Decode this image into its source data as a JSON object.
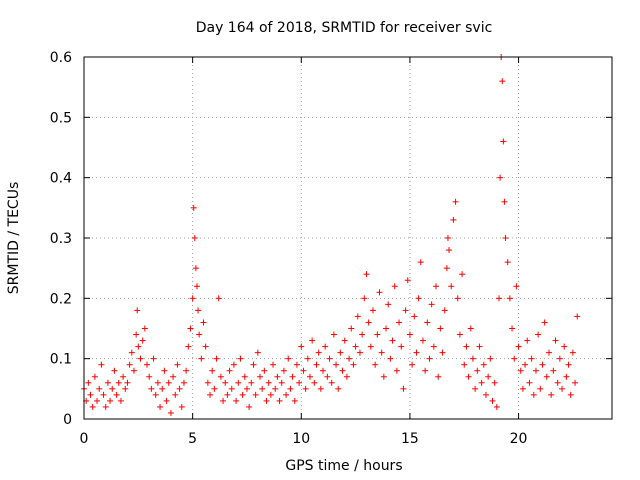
{
  "chart_data": {
    "type": "scatter",
    "title": "Day 164 of 2018, SRMTID for receiver svic",
    "xlabel": "GPS time / hours",
    "ylabel": "SRMTID / TECUs",
    "xlim": [
      0,
      24.3
    ],
    "ylim": [
      0,
      0.6
    ],
    "xticks": [
      0,
      5,
      10,
      15,
      20
    ],
    "xtick_labels": [
      "0",
      "5",
      "10",
      "15",
      "20"
    ],
    "yticks": [
      0,
      0.1,
      0.2,
      0.3,
      0.4,
      0.5,
      0.6
    ],
    "ytick_labels": [
      "0",
      "0.1",
      "0.2",
      "0.3",
      "0.4",
      "0.5",
      "0.6"
    ],
    "grid": true,
    "marker": "plus",
    "color": "#ff0000",
    "series": [
      {
        "name": "SRMTID",
        "points": [
          [
            0.0,
            0.05
          ],
          [
            0.1,
            0.03
          ],
          [
            0.2,
            0.06
          ],
          [
            0.3,
            0.04
          ],
          [
            0.4,
            0.02
          ],
          [
            0.5,
            0.07
          ],
          [
            0.6,
            0.03
          ],
          [
            0.7,
            0.05
          ],
          [
            0.8,
            0.09
          ],
          [
            0.9,
            0.04
          ],
          [
            1.0,
            0.02
          ],
          [
            1.1,
            0.06
          ],
          [
            1.2,
            0.03
          ],
          [
            1.3,
            0.05
          ],
          [
            1.4,
            0.08
          ],
          [
            1.5,
            0.04
          ],
          [
            1.6,
            0.06
          ],
          [
            1.7,
            0.03
          ],
          [
            1.8,
            0.07
          ],
          [
            1.9,
            0.05
          ],
          [
            2.0,
            0.06
          ],
          [
            2.1,
            0.09
          ],
          [
            2.2,
            0.11
          ],
          [
            2.3,
            0.08
          ],
          [
            2.4,
            0.14
          ],
          [
            2.45,
            0.18
          ],
          [
            2.5,
            0.12
          ],
          [
            2.6,
            0.1
          ],
          [
            2.7,
            0.13
          ],
          [
            2.8,
            0.15
          ],
          [
            2.9,
            0.09
          ],
          [
            3.0,
            0.07
          ],
          [
            3.1,
            0.05
          ],
          [
            3.2,
            0.1
          ],
          [
            3.3,
            0.04
          ],
          [
            3.4,
            0.06
          ],
          [
            3.5,
            0.02
          ],
          [
            3.6,
            0.05
          ],
          [
            3.7,
            0.08
          ],
          [
            3.8,
            0.03
          ],
          [
            3.9,
            0.06
          ],
          [
            4.0,
            0.01
          ],
          [
            4.1,
            0.07
          ],
          [
            4.2,
            0.04
          ],
          [
            4.3,
            0.09
          ],
          [
            4.4,
            0.05
          ],
          [
            4.5,
            0.02
          ],
          [
            4.6,
            0.06
          ],
          [
            4.7,
            0.08
          ],
          [
            4.8,
            0.12
          ],
          [
            4.9,
            0.15
          ],
          [
            5.0,
            0.2
          ],
          [
            5.05,
            0.35
          ],
          [
            5.1,
            0.3
          ],
          [
            5.15,
            0.25
          ],
          [
            5.2,
            0.22
          ],
          [
            5.25,
            0.18
          ],
          [
            5.3,
            0.14
          ],
          [
            5.4,
            0.1
          ],
          [
            5.5,
            0.16
          ],
          [
            5.6,
            0.12
          ],
          [
            5.7,
            0.06
          ],
          [
            5.8,
            0.04
          ],
          [
            5.9,
            0.08
          ],
          [
            6.0,
            0.05
          ],
          [
            6.1,
            0.1
          ],
          [
            6.2,
            0.2
          ],
          [
            6.3,
            0.07
          ],
          [
            6.4,
            0.03
          ],
          [
            6.5,
            0.06
          ],
          [
            6.6,
            0.04
          ],
          [
            6.7,
            0.08
          ],
          [
            6.8,
            0.05
          ],
          [
            6.9,
            0.09
          ],
          [
            7.0,
            0.03
          ],
          [
            7.1,
            0.06
          ],
          [
            7.2,
            0.1
          ],
          [
            7.3,
            0.04
          ],
          [
            7.4,
            0.07
          ],
          [
            7.5,
            0.05
          ],
          [
            7.6,
            0.02
          ],
          [
            7.7,
            0.06
          ],
          [
            7.8,
            0.09
          ],
          [
            7.9,
            0.04
          ],
          [
            8.0,
            0.11
          ],
          [
            8.1,
            0.07
          ],
          [
            8.2,
            0.05
          ],
          [
            8.3,
            0.08
          ],
          [
            8.4,
            0.03
          ],
          [
            8.5,
            0.06
          ],
          [
            8.6,
            0.04
          ],
          [
            8.7,
            0.09
          ],
          [
            8.8,
            0.05
          ],
          [
            8.9,
            0.07
          ],
          [
            9.0,
            0.03
          ],
          [
            9.1,
            0.06
          ],
          [
            9.2,
            0.08
          ],
          [
            9.3,
            0.04
          ],
          [
            9.4,
            0.1
          ],
          [
            9.5,
            0.05
          ],
          [
            9.6,
            0.07
          ],
          [
            9.7,
            0.03
          ],
          [
            9.8,
            0.09
          ],
          [
            9.9,
            0.06
          ],
          [
            10.0,
            0.12
          ],
          [
            10.1,
            0.08
          ],
          [
            10.2,
            0.05
          ],
          [
            10.3,
            0.1
          ],
          [
            10.4,
            0.07
          ],
          [
            10.5,
            0.13
          ],
          [
            10.6,
            0.06
          ],
          [
            10.7,
            0.09
          ],
          [
            10.8,
            0.11
          ],
          [
            10.9,
            0.05
          ],
          [
            11.0,
            0.08
          ],
          [
            11.1,
            0.12
          ],
          [
            11.2,
            0.07
          ],
          [
            11.3,
            0.1
          ],
          [
            11.4,
            0.06
          ],
          [
            11.5,
            0.14
          ],
          [
            11.6,
            0.09
          ],
          [
            11.7,
            0.05
          ],
          [
            11.8,
            0.11
          ],
          [
            11.9,
            0.08
          ],
          [
            12.0,
            0.13
          ],
          [
            12.1,
            0.07
          ],
          [
            12.2,
            0.1
          ],
          [
            12.3,
            0.15
          ],
          [
            12.4,
            0.09
          ],
          [
            12.5,
            0.12
          ],
          [
            12.6,
            0.17
          ],
          [
            12.7,
            0.11
          ],
          [
            12.8,
            0.14
          ],
          [
            12.9,
            0.2
          ],
          [
            13.0,
            0.24
          ],
          [
            13.1,
            0.16
          ],
          [
            13.2,
            0.12
          ],
          [
            13.3,
            0.18
          ],
          [
            13.4,
            0.09
          ],
          [
            13.5,
            0.14
          ],
          [
            13.6,
            0.21
          ],
          [
            13.7,
            0.11
          ],
          [
            13.8,
            0.07
          ],
          [
            13.9,
            0.15
          ],
          [
            14.0,
            0.19
          ],
          [
            14.1,
            0.1
          ],
          [
            14.2,
            0.13
          ],
          [
            14.3,
            0.22
          ],
          [
            14.4,
            0.08
          ],
          [
            14.5,
            0.16
          ],
          [
            14.6,
            0.12
          ],
          [
            14.7,
            0.05
          ],
          [
            14.8,
            0.18
          ],
          [
            14.9,
            0.23
          ],
          [
            15.0,
            0.14
          ],
          [
            15.1,
            0.09
          ],
          [
            15.2,
            0.17
          ],
          [
            15.3,
            0.11
          ],
          [
            15.4,
            0.2
          ],
          [
            15.5,
            0.26
          ],
          [
            15.6,
            0.13
          ],
          [
            15.7,
            0.08
          ],
          [
            15.8,
            0.16
          ],
          [
            15.9,
            0.1
          ],
          [
            16.0,
            0.19
          ],
          [
            16.1,
            0.12
          ],
          [
            16.2,
            0.22
          ],
          [
            16.3,
            0.07
          ],
          [
            16.4,
            0.15
          ],
          [
            16.5,
            0.11
          ],
          [
            16.6,
            0.18
          ],
          [
            16.7,
            0.25
          ],
          [
            16.75,
            0.3
          ],
          [
            16.8,
            0.28
          ],
          [
            16.9,
            0.22
          ],
          [
            17.0,
            0.33
          ],
          [
            17.1,
            0.36
          ],
          [
            17.2,
            0.2
          ],
          [
            17.3,
            0.14
          ],
          [
            17.4,
            0.24
          ],
          [
            17.5,
            0.09
          ],
          [
            17.6,
            0.12
          ],
          [
            17.7,
            0.07
          ],
          [
            17.8,
            0.15
          ],
          [
            17.9,
            0.1
          ],
          [
            18.0,
            0.05
          ],
          [
            18.1,
            0.08
          ],
          [
            18.2,
            0.12
          ],
          [
            18.3,
            0.06
          ],
          [
            18.4,
            0.09
          ],
          [
            18.5,
            0.04
          ],
          [
            18.6,
            0.07
          ],
          [
            18.7,
            0.1
          ],
          [
            18.8,
            0.03
          ],
          [
            18.9,
            0.06
          ],
          [
            19.0,
            0.02
          ],
          [
            19.1,
            0.2
          ],
          [
            19.15,
            0.4
          ],
          [
            19.2,
            0.6
          ],
          [
            19.25,
            0.56
          ],
          [
            19.3,
            0.46
          ],
          [
            19.35,
            0.36
          ],
          [
            19.4,
            0.3
          ],
          [
            19.5,
            0.26
          ],
          [
            19.6,
            0.2
          ],
          [
            19.7,
            0.15
          ],
          [
            19.8,
            0.1
          ],
          [
            19.9,
            0.22
          ],
          [
            20.0,
            0.12
          ],
          [
            20.1,
            0.08
          ],
          [
            20.2,
            0.05
          ],
          [
            20.3,
            0.09
          ],
          [
            20.4,
            0.13
          ],
          [
            20.5,
            0.06
          ],
          [
            20.6,
            0.1
          ],
          [
            20.7,
            0.04
          ],
          [
            20.8,
            0.08
          ],
          [
            20.9,
            0.14
          ],
          [
            21.0,
            0.05
          ],
          [
            21.1,
            0.09
          ],
          [
            21.2,
            0.16
          ],
          [
            21.3,
            0.07
          ],
          [
            21.4,
            0.11
          ],
          [
            21.5,
            0.04
          ],
          [
            21.6,
            0.08
          ],
          [
            21.7,
            0.13
          ],
          [
            21.8,
            0.06
          ],
          [
            21.9,
            0.1
          ],
          [
            22.0,
            0.05
          ],
          [
            22.1,
            0.12
          ],
          [
            22.2,
            0.07
          ],
          [
            22.3,
            0.09
          ],
          [
            22.4,
            0.04
          ],
          [
            22.5,
            0.11
          ],
          [
            22.6,
            0.06
          ],
          [
            22.7,
            0.17
          ]
        ]
      }
    ]
  }
}
